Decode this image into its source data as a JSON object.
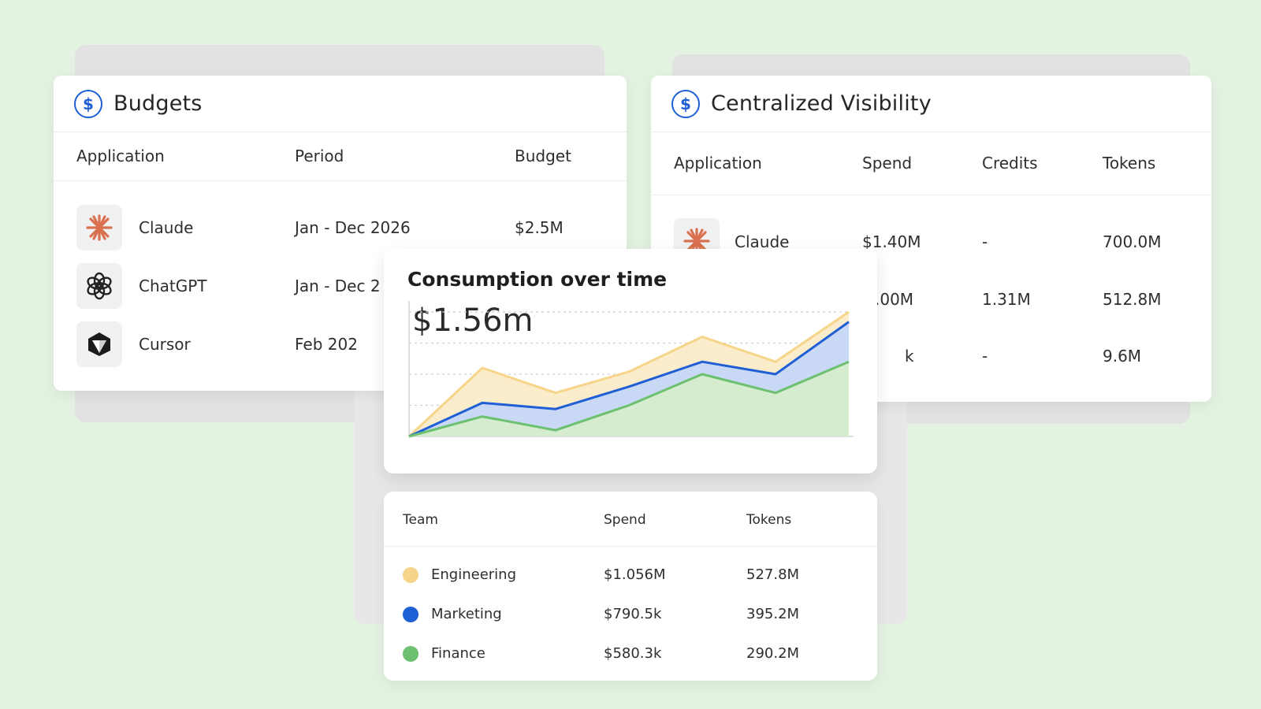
{
  "colors": {
    "background": "#e3f2e1",
    "accent_blue": "#1f5fd6",
    "claude_orange": "#d9704f",
    "engineering": "#f6d58a",
    "marketing": "#1f5fd6",
    "finance": "#6cc070"
  },
  "budgets": {
    "title": "Budgets",
    "icon": "dollar-icon",
    "columns": [
      "Application",
      "Period",
      "Budget"
    ],
    "rows": [
      {
        "icon": "claude-icon",
        "application": "Claude",
        "period": "Jan - Dec 2026",
        "budget": "$2.5M"
      },
      {
        "icon": "chatgpt-icon",
        "application": "ChatGPT",
        "period": "Jan - Dec 2",
        "budget": ""
      },
      {
        "icon": "cursor-icon",
        "application": "Cursor",
        "period": "Feb 202",
        "budget": ""
      }
    ]
  },
  "visibility": {
    "title": "Centralized Visibility",
    "icon": "dollar-icon",
    "columns": [
      "Application",
      "Spend",
      "Credits",
      "Tokens"
    ],
    "rows": [
      {
        "icon": "claude-icon",
        "application": "Claude",
        "spend": "$1.40M",
        "credits": "-",
        "tokens": "700.0M"
      },
      {
        "application": "",
        "spend": ".00M",
        "credits": "1.31M",
        "tokens": "512.8M"
      },
      {
        "application": "",
        "spend": "k",
        "credits": "-",
        "tokens": "9.6M"
      }
    ]
  },
  "consumption": {
    "title": "Consumption over time",
    "total": "$1.56m"
  },
  "chart_data": {
    "type": "area",
    "title": "Consumption over time",
    "grid": true,
    "series": [
      {
        "name": "Engineering",
        "color": "#f6d58a",
        "values": [
          0,
          0.55,
          0.35,
          0.52,
          0.8,
          0.6,
          1.0
        ]
      },
      {
        "name": "Marketing",
        "color": "#1f5fd6",
        "values": [
          0,
          0.27,
          0.22,
          0.4,
          0.6,
          0.5,
          0.92
        ]
      },
      {
        "name": "Finance",
        "color": "#6cc070",
        "values": [
          0,
          0.16,
          0.05,
          0.25,
          0.5,
          0.35,
          0.6
        ]
      }
    ]
  },
  "teams": {
    "columns": [
      "Team",
      "Spend",
      "Tokens"
    ],
    "rows": [
      {
        "team": "Engineering",
        "color": "#f6d58a",
        "spend": "$1.056M",
        "tokens": "527.8M"
      },
      {
        "team": "Marketing",
        "color": "#1f5fd6",
        "spend": "$790.5k",
        "tokens": "395.2M"
      },
      {
        "team": "Finance",
        "color": "#6cc070",
        "spend": "$580.3k",
        "tokens": "290.2M"
      }
    ]
  }
}
